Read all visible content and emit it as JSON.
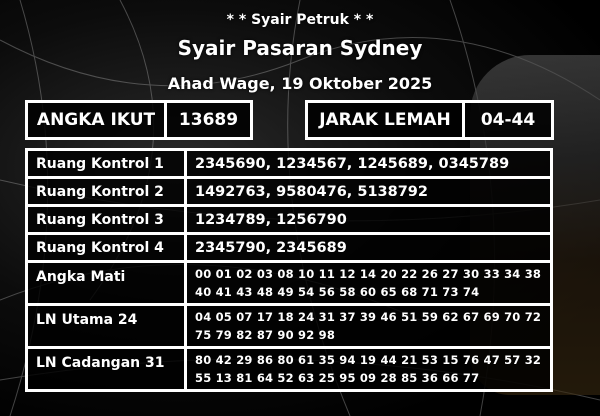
{
  "header": {
    "subtitle": "* * Syair Petruk * *",
    "title": "Syair Pasaran Sydney",
    "date": "Ahad Wage, 19 Oktober 2025"
  },
  "angka_ikut": {
    "label": "ANGKA IKUT",
    "value": "13689"
  },
  "jarak_lemah": {
    "label": "JARAK LEMAH",
    "value": "04-44"
  },
  "rows": [
    {
      "label": "Ruang Kontrol 1",
      "value": "2345690, 1234567, 1245689, 0345789"
    },
    {
      "label": "Ruang Kontrol 2",
      "value": "1492763, 9580476, 5138792"
    },
    {
      "label": "Ruang Kontrol 3",
      "value": "1234789, 1256790"
    },
    {
      "label": "Ruang Kontrol 4",
      "value": "2345790, 2345689"
    },
    {
      "label": "Angka Mati",
      "value": "00 01 02 03 08 10 11 12 14 20 22 26 27 30 33 34 38 40 41 43 48 49 54 56 58 60 65 68 71 73 74"
    },
    {
      "label": "LN Utama 24",
      "value": "04 05 07 17 18 24 31 37 39 46 51 59 62 67 69 70 72 75 79 82 87 90 92 98"
    },
    {
      "label": "LN Cadangan 31",
      "value": "80 42 29 86 80 61 35 94 19 44 21 53 15 76 47 57 32 55 13 81 64 52 63 25 95 09 28 85 36 66 77"
    }
  ]
}
